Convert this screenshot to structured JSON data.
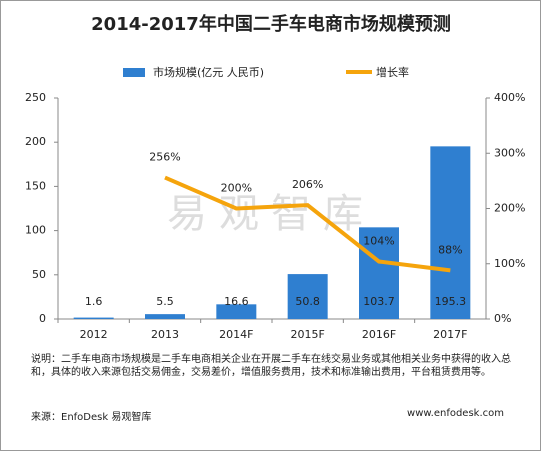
{
  "chart_data": {
    "type": "bar-line",
    "title": "2014-2017年中国二手车电商市场规模预测",
    "categories": [
      "2012",
      "2013",
      "2014F",
      "2015F",
      "2016F",
      "2017F"
    ],
    "series": [
      {
        "name": "市场规模(亿元 人民币)",
        "color": "#2f7fd0",
        "type": "bar",
        "values": [
          1.6,
          5.5,
          16.6,
          50.8,
          103.7,
          195.3
        ]
      },
      {
        "name": "增长率",
        "color": "#f5a40c",
        "type": "line",
        "axis": "y2",
        "values": [
          null,
          256,
          200,
          206,
          104,
          88
        ],
        "value_labels": [
          null,
          "256%",
          "200%",
          "206%",
          "104%",
          "88%"
        ]
      }
    ],
    "ylim": [
      0,
      250
    ],
    "yticks": [
      0,
      50,
      100,
      150,
      200,
      250
    ],
    "y2lim": [
      0,
      400
    ],
    "y2ticks": [
      {
        "value": 0,
        "label": "0%"
      },
      {
        "value": 100,
        "label": "100%"
      },
      {
        "value": 200,
        "label": "200%"
      },
      {
        "value": 300,
        "label": "300%"
      },
      {
        "value": 400,
        "label": "400%"
      }
    ],
    "watermark": "易观智库",
    "note": "说明：二手车电商市场规模是二手车电商相关企业在开展二手车在线交易业务或其他相关业务中获得的收入总和，具体的收入来源包括交易佣金，交易差价，增值服务费用，技术和标准输出费用，平台租赁费用等。",
    "source": "来源：EnfoDesk 易观智库",
    "website": "www.enfodesk.com"
  }
}
